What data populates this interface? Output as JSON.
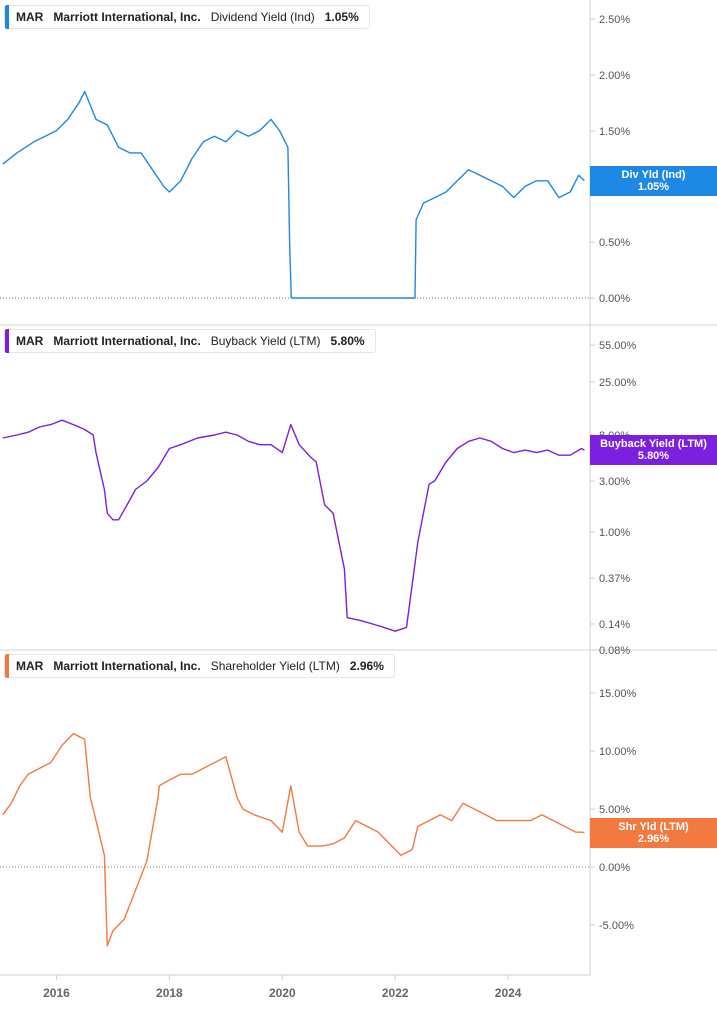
{
  "colors": {
    "dividend": "#1e88e5",
    "buyback": "#7b1fe0",
    "shareholder": "#f2793f"
  },
  "chart_data": [
    {
      "type": "line",
      "legend": {
        "ticker": "MAR",
        "company": "Marriott International, Inc.",
        "metric": "Dividend Yield (Ind)",
        "value": "1.05%"
      },
      "badge": {
        "label": "Div Yld (Ind)",
        "value": "1.05%"
      },
      "y_ticks": [
        "2.50%",
        "2.00%",
        "1.50%",
        "1.00%",
        "0.50%",
        "0.00%"
      ],
      "ylim": [
        0,
        2.6
      ],
      "x": [
        2015.05,
        2015.3,
        2015.6,
        2015.8,
        2016.0,
        2016.2,
        2016.4,
        2016.5,
        2016.7,
        2016.9,
        2017.1,
        2017.3,
        2017.5,
        2017.7,
        2017.9,
        2018.0,
        2018.2,
        2018.4,
        2018.6,
        2018.8,
        2019.0,
        2019.2,
        2019.4,
        2019.6,
        2019.8,
        2019.95,
        2020.1,
        2020.13,
        2020.16,
        2021.0,
        2022.0,
        2022.35,
        2022.37,
        2022.5,
        2022.7,
        2022.9,
        2023.1,
        2023.3,
        2023.5,
        2023.7,
        2023.9,
        2024.1,
        2024.3,
        2024.5,
        2024.7,
        2024.9,
        2025.1,
        2025.25,
        2025.35
      ],
      "values": [
        1.2,
        1.3,
        1.4,
        1.45,
        1.5,
        1.6,
        1.75,
        1.85,
        1.6,
        1.55,
        1.35,
        1.3,
        1.3,
        1.15,
        1.0,
        0.95,
        1.05,
        1.25,
        1.4,
        1.45,
        1.4,
        1.5,
        1.45,
        1.5,
        1.6,
        1.5,
        1.35,
        0.5,
        0.0,
        0.0,
        0.0,
        0.0,
        0.7,
        0.85,
        0.9,
        0.95,
        1.05,
        1.15,
        1.1,
        1.05,
        1.0,
        0.9,
        1.0,
        1.05,
        1.05,
        0.9,
        0.95,
        1.1,
        1.05
      ]
    },
    {
      "type": "line",
      "legend": {
        "ticker": "MAR",
        "company": "Marriott International, Inc.",
        "metric": "Buyback Yield (LTM)",
        "value": "5.80%"
      },
      "badge": {
        "label": "Buyback Yield (LTM)",
        "value": "5.80%"
      },
      "y_ticks": [
        "55.00%",
        "25.00%",
        "8.00%",
        "3.00%",
        "1.00%",
        "0.37%",
        "0.14%",
        "0.08%"
      ],
      "y_scale": "log",
      "ylim": [
        0.08,
        60
      ],
      "x": [
        2015.05,
        2015.3,
        2015.5,
        2015.7,
        2015.9,
        2016.1,
        2016.3,
        2016.5,
        2016.65,
        2016.7,
        2016.85,
        2016.9,
        2017.0,
        2017.1,
        2017.3,
        2017.4,
        2017.6,
        2017.8,
        2018.0,
        2018.2,
        2018.5,
        2018.8,
        2019.0,
        2019.2,
        2019.4,
        2019.6,
        2019.8,
        2020.0,
        2020.15,
        2020.3,
        2020.5,
        2020.6,
        2020.75,
        2020.9,
        2021.1,
        2021.15,
        2021.4,
        2021.6,
        2021.8,
        2022.0,
        2022.2,
        2022.4,
        2022.6,
        2022.7,
        2022.9,
        2023.1,
        2023.3,
        2023.5,
        2023.7,
        2023.9,
        2024.1,
        2024.3,
        2024.5,
        2024.7,
        2024.9,
        2025.1,
        2025.3,
        2025.35
      ],
      "values": [
        7.5,
        8.0,
        8.5,
        9.5,
        10.0,
        11.0,
        10.0,
        9.0,
        8.0,
        5.5,
        2.5,
        1.5,
        1.3,
        1.3,
        2.0,
        2.5,
        3.0,
        4.0,
        6.0,
        6.5,
        7.5,
        8.0,
        8.5,
        8.0,
        7.0,
        6.5,
        6.5,
        5.5,
        10.0,
        6.5,
        5.0,
        4.5,
        1.8,
        1.5,
        0.45,
        0.16,
        0.15,
        0.14,
        0.13,
        0.12,
        0.13,
        0.8,
        2.8,
        3.0,
        4.5,
        6.0,
        7.0,
        7.5,
        7.0,
        6.0,
        5.5,
        5.8,
        5.5,
        5.8,
        5.2,
        5.2,
        6.0,
        5.8
      ]
    },
    {
      "type": "line",
      "legend": {
        "ticker": "MAR",
        "company": "Marriott International, Inc.",
        "metric": "Shareholder Yield (LTM)",
        "value": "2.96%"
      },
      "badge": {
        "label": "Shr Yld (LTM)",
        "value": "2.96%"
      },
      "y_ticks": [
        "15.00%",
        "10.00%",
        "5.00%",
        "0.00%",
        "-5.00%"
      ],
      "ylim": [
        -8,
        16.5
      ],
      "x": [
        2015.05,
        2015.2,
        2015.35,
        2015.5,
        2015.7,
        2015.9,
        2016.1,
        2016.3,
        2016.5,
        2016.6,
        2016.7,
        2016.85,
        2016.9,
        2017.0,
        2017.2,
        2017.4,
        2017.6,
        2017.8,
        2017.82,
        2018.0,
        2018.2,
        2018.4,
        2018.6,
        2018.8,
        2019.0,
        2019.2,
        2019.3,
        2019.5,
        2019.8,
        2020.0,
        2020.15,
        2020.3,
        2020.45,
        2020.7,
        2020.9,
        2021.1,
        2021.3,
        2021.5,
        2021.7,
        2021.9,
        2022.1,
        2022.3,
        2022.4,
        2022.6,
        2022.8,
        2023.0,
        2023.2,
        2023.4,
        2023.6,
        2023.8,
        2024.0,
        2024.2,
        2024.4,
        2024.6,
        2024.8,
        2025.0,
        2025.2,
        2025.3,
        2025.35
      ],
      "values": [
        4.5,
        5.5,
        7.0,
        8.0,
        8.5,
        9.0,
        10.5,
        11.5,
        11.0,
        6.0,
        4.0,
        1.0,
        -6.8,
        -5.5,
        -4.5,
        -2.0,
        0.5,
        6.0,
        7.0,
        7.5,
        8.0,
        8.0,
        8.5,
        9.0,
        9.5,
        6.0,
        5.0,
        4.5,
        4.0,
        3.0,
        7.0,
        3.0,
        1.8,
        1.8,
        2.0,
        2.5,
        4.0,
        3.5,
        3.0,
        2.0,
        1.0,
        1.5,
        3.5,
        4.0,
        4.5,
        4.0,
        5.5,
        5.0,
        4.5,
        4.0,
        4.0,
        4.0,
        4.0,
        4.5,
        4.0,
        3.5,
        3.0,
        3.0,
        2.96
      ]
    }
  ],
  "x_axis": {
    "labels": [
      "2016",
      "2018",
      "2020",
      "2022",
      "2024"
    ],
    "values": [
      2016,
      2018,
      2020,
      2022,
      2024
    ],
    "xlim": [
      2015.05,
      2015.8
    ]
  }
}
